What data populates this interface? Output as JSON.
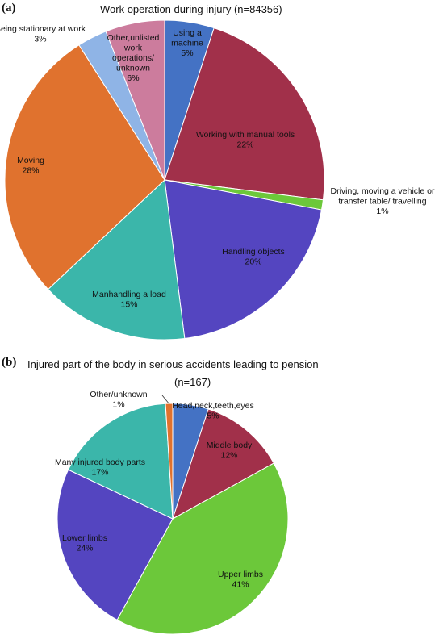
{
  "panels": [
    {
      "letter": "(a)",
      "title": "Work operation during injury (n=84356)",
      "subtitle": ""
    },
    {
      "letter": "(b)",
      "title": "Injured part of the body in serious accidents leading to pension",
      "subtitle": "(n=167)"
    }
  ],
  "chart_data": [
    {
      "type": "pie",
      "title": "Work operation during injury (n=84356)",
      "slices": [
        {
          "name": "Using a machine",
          "label_lines": [
            "Using a",
            "machine",
            "5%"
          ],
          "value": 5,
          "color": "#4472c4"
        },
        {
          "name": "Working with manual tools",
          "label_lines": [
            "Working with manual tools",
            "22%"
          ],
          "value": 22,
          "color": "#a1304a"
        },
        {
          "name": "Driving, moving a vehicle or transfer table/ travelling",
          "label_lines": [
            "Driving, moving a vehicle  or",
            "transfer table/ travelling",
            "1%"
          ],
          "value": 1,
          "color": "#6cc83a"
        },
        {
          "name": "Handling objects",
          "label_lines": [
            "Handling objects",
            "20%"
          ],
          "value": 20,
          "color": "#5445c0"
        },
        {
          "name": "Manhandling a load",
          "label_lines": [
            "Manhandling a load",
            "15%"
          ],
          "value": 15,
          "color": "#3bb6aa"
        },
        {
          "name": "Moving",
          "label_lines": [
            "Moving",
            "28%"
          ],
          "value": 28,
          "color": "#e0722e"
        },
        {
          "name": "Being stationary at work",
          "label_lines": [
            "Being stationary at work",
            "3%"
          ],
          "value": 3,
          "color": "#8fb4e6"
        },
        {
          "name": "Other,unlisted work operations/ unknown",
          "label_lines": [
            "Other,unlisted",
            "work",
            "operations/",
            "unknown",
            "6%"
          ],
          "value": 6,
          "color": "#cc7c9d"
        }
      ]
    },
    {
      "type": "pie",
      "title": "Injured part of the body in serious accidents leading to pension (n=167)",
      "slices": [
        {
          "name": "Head,neck,teeth,eyes",
          "label_lines": [
            "Head,neck,teeth,eyes",
            "5%"
          ],
          "value": 5,
          "color": "#4472c4"
        },
        {
          "name": "Middle body",
          "label_lines": [
            "Middle body",
            "12%"
          ],
          "value": 12,
          "color": "#a1304a"
        },
        {
          "name": "Upper limbs",
          "label_lines": [
            "Upper limbs",
            "41%"
          ],
          "value": 41,
          "color": "#6cc83a"
        },
        {
          "name": "Lower limbs",
          "label_lines": [
            "Lower limbs",
            "24%"
          ],
          "value": 24,
          "color": "#5445c0"
        },
        {
          "name": "Many injured body parts",
          "label_lines": [
            "Many injured body parts",
            "17%"
          ],
          "value": 17,
          "color": "#3bb6aa"
        },
        {
          "name": "Other/unknown",
          "label_lines": [
            "Other/unknown",
            "1%"
          ],
          "value": 1,
          "color": "#e0722e"
        }
      ]
    }
  ]
}
